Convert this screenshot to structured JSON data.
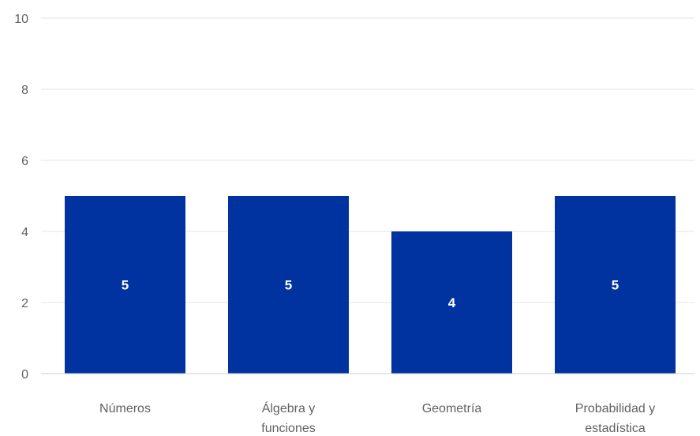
{
  "chart_data": {
    "type": "bar",
    "categories": [
      [
        "Números"
      ],
      [
        "Álgebra y",
        "funciones"
      ],
      [
        "Geometría"
      ],
      [
        "Probabilidad y",
        "estadística"
      ]
    ],
    "values": [
      5,
      5,
      4,
      5
    ],
    "data_labels": [
      "5",
      "5",
      "4",
      "5"
    ],
    "ylim": [
      0,
      10
    ],
    "yticks": [
      0,
      2,
      4,
      6,
      8,
      10
    ],
    "grid": true,
    "legend": "none",
    "bar_color": "#0033a0"
  }
}
